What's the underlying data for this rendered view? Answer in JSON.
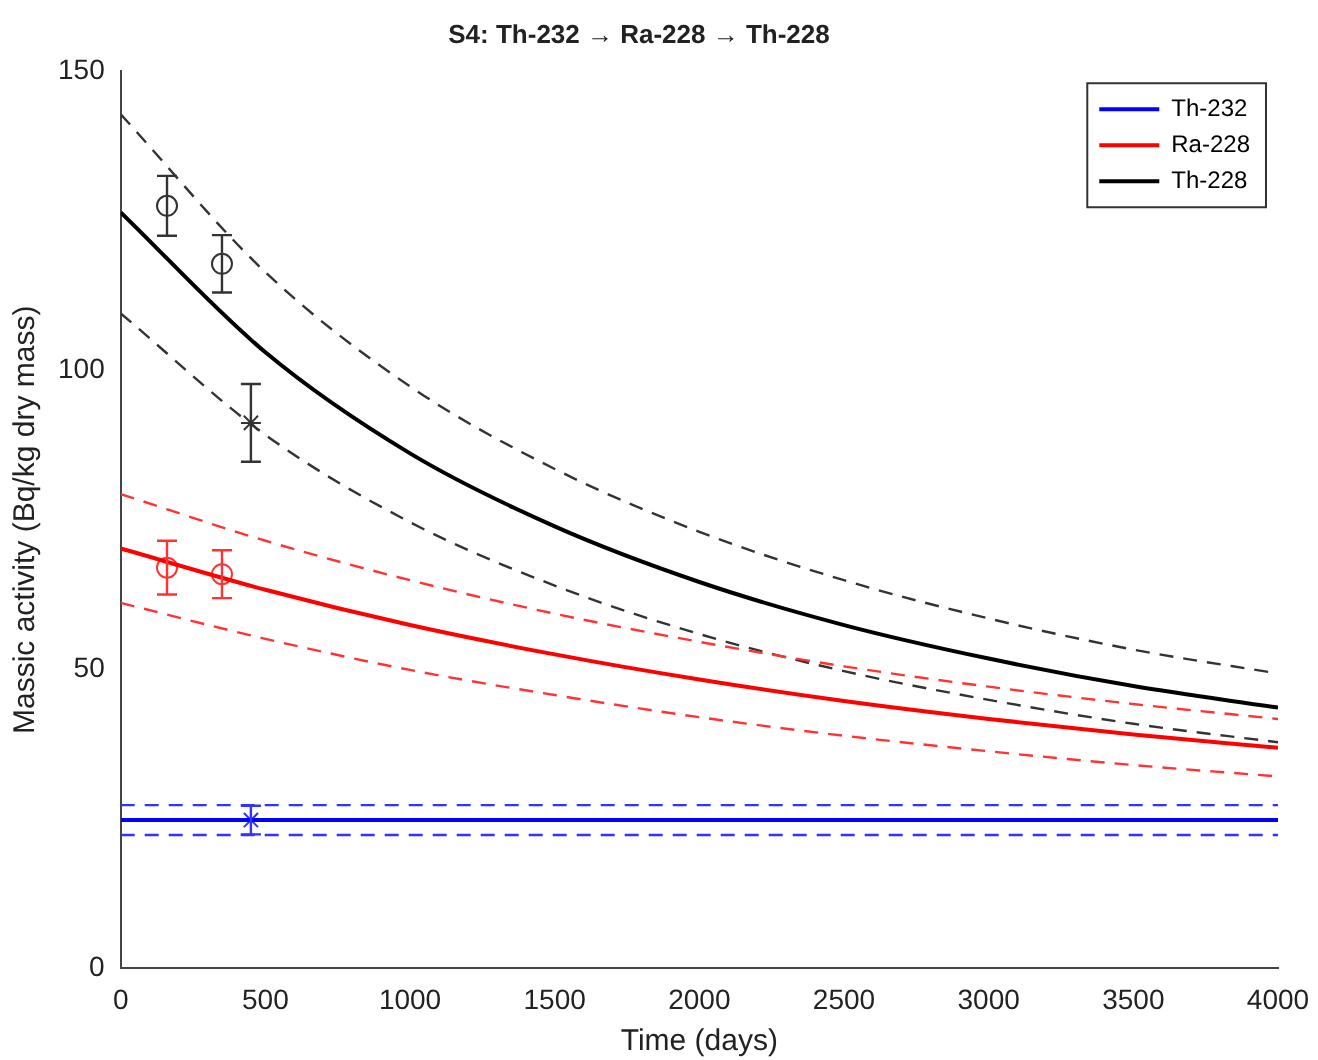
{
  "chart_data": {
    "type": "line",
    "title": "S4: Th-232 → Ra-228 → Th-228",
    "xlabel": "Time (days)",
    "ylabel": "Massic activity (Bq/kg dry mass)",
    "xlim": [
      0,
      4000
    ],
    "xticks": [
      0,
      500,
      1000,
      1500,
      2000,
      2500,
      3000,
      3500,
      4000
    ],
    "ylim": [
      0,
      150
    ],
    "yticks": [
      0,
      50,
      100,
      150
    ],
    "grid": false,
    "legend": "top right",
    "series": [
      {
        "name": "Th-232",
        "color": "#0000ff",
        "x": [
          0,
          4000
        ],
        "values": [
          24.8,
          24.8
        ],
        "line_style": "solid"
      },
      {
        "name": "Ra-228",
        "color": "#ff0000",
        "x": [
          0,
          500,
          1000,
          1500,
          2000,
          2500,
          3000,
          3500,
          4000
        ],
        "values": [
          70.2,
          63.3,
          57.4,
          52.5,
          48.3,
          44.7,
          41.7,
          39.1,
          36.9
        ],
        "line_style": "solid"
      },
      {
        "name": "Th-228",
        "color": "#000000",
        "x": [
          0,
          500,
          1000,
          1500,
          2000,
          2500,
          3000,
          3500,
          4000
        ],
        "values": [
          126.4,
          103.0,
          86.1,
          73.9,
          64.6,
          57.4,
          51.8,
          47.2,
          43.6
        ],
        "line_style": "solid"
      },
      {
        "color": "#3333ff",
        "x": [
          0,
          4000
        ],
        "values": [
          27.3,
          27.3
        ],
        "line_style": "dashed"
      },
      {
        "color": "#3333ff",
        "x": [
          0,
          4000
        ],
        "values": [
          22.3,
          22.3
        ],
        "line_style": "dashed"
      },
      {
        "color": "#ff3333",
        "x": [
          0,
          500,
          1000,
          1500,
          2000,
          2500,
          3000,
          3500,
          4000
        ],
        "values": [
          79.3,
          71.5,
          64.9,
          59.3,
          54.6,
          50.5,
          47.1,
          44.2,
          41.7
        ],
        "line_style": "dashed"
      },
      {
        "color": "#ff3333",
        "x": [
          0,
          500,
          1000,
          1500,
          2000,
          2500,
          3000,
          3500,
          4000
        ],
        "values": [
          61.1,
          55.1,
          49.9,
          45.7,
          42.0,
          38.9,
          36.3,
          34.0,
          32.1
        ],
        "line_style": "dashed"
      },
      {
        "color": "#333333",
        "x": [
          0,
          500,
          1000,
          1500,
          2000,
          2500,
          3000,
          3500,
          4000
        ],
        "values": [
          142.8,
          116.4,
          97.3,
          83.5,
          73.0,
          64.9,
          58.5,
          53.3,
          49.3
        ],
        "line_style": "dashed"
      },
      {
        "color": "#333333",
        "x": [
          0,
          500,
          1000,
          1500,
          2000,
          2500,
          3000,
          3500,
          4000
        ],
        "values": [
          109.5,
          89.2,
          74.6,
          64.0,
          55.9,
          49.7,
          44.9,
          40.9,
          37.8
        ],
        "line_style": "dashed"
      },
      {
        "type": "scatter",
        "color": "#333333",
        "marker": "circle",
        "x": [
          160,
          350
        ],
        "values": [
          127.5,
          117.8
        ],
        "errors": [
          5,
          4.8
        ]
      },
      {
        "type": "scatter",
        "color": "#333333",
        "marker": "cross",
        "x": [
          450
        ],
        "values": [
          91.2
        ],
        "errors": [
          6.5
        ]
      },
      {
        "type": "scatter",
        "color": "#ff3333",
        "marker": "circle",
        "x": [
          160,
          350
        ],
        "values": [
          67.0,
          65.9
        ],
        "errors": [
          4.5,
          4
        ]
      },
      {
        "type": "scatter",
        "color": "#3333ff",
        "marker": "cross",
        "x": [
          450
        ],
        "values": [
          24.8
        ],
        "errors": [
          2.4
        ]
      }
    ]
  }
}
